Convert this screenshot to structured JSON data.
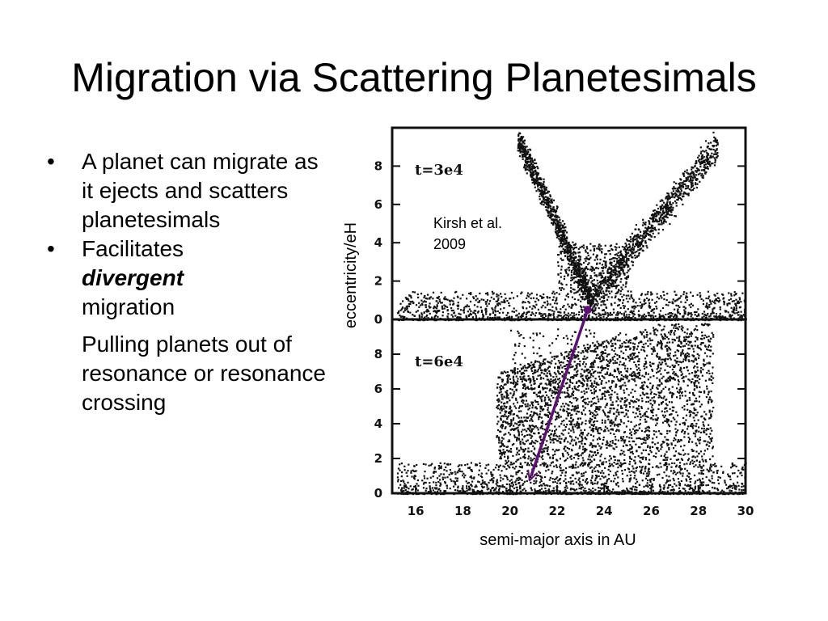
{
  "slide": {
    "title": "Migration via Scattering Planetesimals",
    "bullets": [
      {
        "text": "A planet can migrate as it ejects and scatters planetesimals"
      },
      {
        "prefix": "Facilitates",
        "emphasis": "divergent",
        "suffix": "migration"
      }
    ],
    "sub_paragraph": "Pulling planets out of resonance or resonance crossing",
    "bullet_symbol": "•"
  },
  "figure": {
    "ylabel": "eccentricity/eH",
    "xlabel": "semi-major axis in AU",
    "citation": "Kirsh et al. 2009",
    "arrow_color": "#5c1173"
  },
  "chart_data": {
    "type": "scatter",
    "xlim": [
      15,
      30
    ],
    "x_ticks": [
      16,
      18,
      20,
      22,
      24,
      26,
      28,
      30
    ],
    "panels": [
      {
        "label": "t=3e4",
        "ylim": [
          0,
          10
        ],
        "y_ticks": [
          0,
          2,
          4,
          6,
          8
        ],
        "planet_marker": {
          "x": 23.3,
          "y": 0.5
        },
        "point_density_bands": [
          {
            "x_from": 15.2,
            "x_to": 30,
            "y_from": 0,
            "y_to": 1.5,
            "density": "very high"
          },
          {
            "x_from": 20.5,
            "x_to": 22.5,
            "y_from": 1.5,
            "y_to": 9.5,
            "density": "high, left V-arm"
          },
          {
            "x_from": 24.5,
            "x_to": 28.8,
            "y_from": 1.5,
            "y_to": 9.0,
            "density": "high, right V-arm"
          }
        ]
      },
      {
        "label": "t=6e4",
        "ylim": [
          0,
          10
        ],
        "y_ticks": [
          0,
          2,
          4,
          6,
          8
        ],
        "planet_marker": {
          "x": 20.9,
          "y": 1.0
        },
        "point_density_bands": [
          {
            "x_from": 15.2,
            "x_to": 30,
            "y_from": 0,
            "y_to": 1.8,
            "density": "very high"
          },
          {
            "x_from": 19.5,
            "x_to": 28.5,
            "y_from": 1.8,
            "y_to": 9.0,
            "density": "high, broad region"
          }
        ]
      }
    ],
    "annotation": {
      "type": "arrow",
      "from_panel": 0,
      "to_panel": 1,
      "description": "planet migrates inward from ~23.3 AU to ~20.9 AU"
    }
  }
}
